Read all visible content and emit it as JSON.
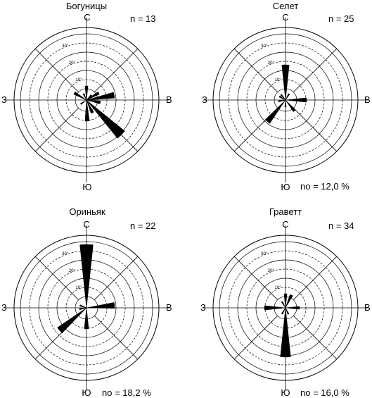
{
  "chart_data": [
    {
      "type": "rose",
      "title": "Богуницы",
      "n_label": "n = 13",
      "no_label": "",
      "directions": {
        "N": "С",
        "E": "В",
        "S": "Ю",
        "W": "З"
      },
      "ring_labels": [
        "10°",
        "20°",
        "30°"
      ],
      "petals": [
        {
          "azimuth": 0,
          "value": 2
        },
        {
          "azimuth": 45,
          "value": 1
        },
        {
          "azimuth": 60,
          "value": 2
        },
        {
          "azimuth": 80,
          "value": 4
        },
        {
          "azimuth": 100,
          "value": 2
        },
        {
          "azimuth": 135,
          "value": 7
        },
        {
          "azimuth": 155,
          "value": 2
        },
        {
          "azimuth": 178,
          "value": 3
        },
        {
          "azimuth": 235,
          "value": 1
        },
        {
          "azimuth": 300,
          "value": 2
        },
        {
          "azimuth": 335,
          "value": 1
        }
      ]
    },
    {
      "type": "rose",
      "title": "Селет",
      "n_label": "n = 25",
      "no_label": "no = 12,0 %",
      "directions": {
        "N": "С",
        "E": "В",
        "S": "Ю",
        "W": "З"
      },
      "ring_labels": [
        "10°",
        "20°",
        "30°"
      ],
      "petals": [
        {
          "azimuth": 0,
          "value": 5
        },
        {
          "azimuth": 30,
          "value": 1
        },
        {
          "azimuth": 90,
          "value": 3
        },
        {
          "azimuth": 140,
          "value": 2
        },
        {
          "azimuth": 180,
          "value": 1
        },
        {
          "azimuth": 220,
          "value": 4
        },
        {
          "azimuth": 260,
          "value": 1
        },
        {
          "azimuth": 300,
          "value": 1
        },
        {
          "azimuth": 320,
          "value": 1
        }
      ]
    },
    {
      "type": "rose",
      "title": "Ориньяк",
      "n_label": "n = 22",
      "no_label": "no = 18,2 %",
      "directions": {
        "N": "С",
        "E": "В",
        "S": "Ю",
        "W": "З"
      },
      "ring_labels": [
        "10°",
        "20°",
        "30°"
      ],
      "petals": [
        {
          "azimuth": 0,
          "value": 9
        },
        {
          "azimuth": 85,
          "value": 4
        },
        {
          "azimuth": 180,
          "value": 3
        },
        {
          "azimuth": 230,
          "value": 5
        },
        {
          "azimuth": 260,
          "value": 1
        },
        {
          "azimuth": 290,
          "value": 1
        }
      ]
    },
    {
      "type": "rose",
      "title": "Граветт",
      "n_label": "n = 34",
      "no_label": "no = 16,0 %",
      "directions": {
        "N": "С",
        "E": "В",
        "S": "Ю",
        "W": "З"
      },
      "ring_labels": [
        "10°",
        "20°",
        "30°"
      ],
      "petals": [
        {
          "azimuth": 0,
          "value": 2
        },
        {
          "azimuth": 25,
          "value": 2
        },
        {
          "azimuth": 90,
          "value": 2
        },
        {
          "azimuth": 155,
          "value": 1
        },
        {
          "azimuth": 180,
          "value": 7
        },
        {
          "azimuth": 210,
          "value": 1
        },
        {
          "azimuth": 270,
          "value": 3
        },
        {
          "azimuth": 330,
          "value": 1
        }
      ]
    }
  ]
}
